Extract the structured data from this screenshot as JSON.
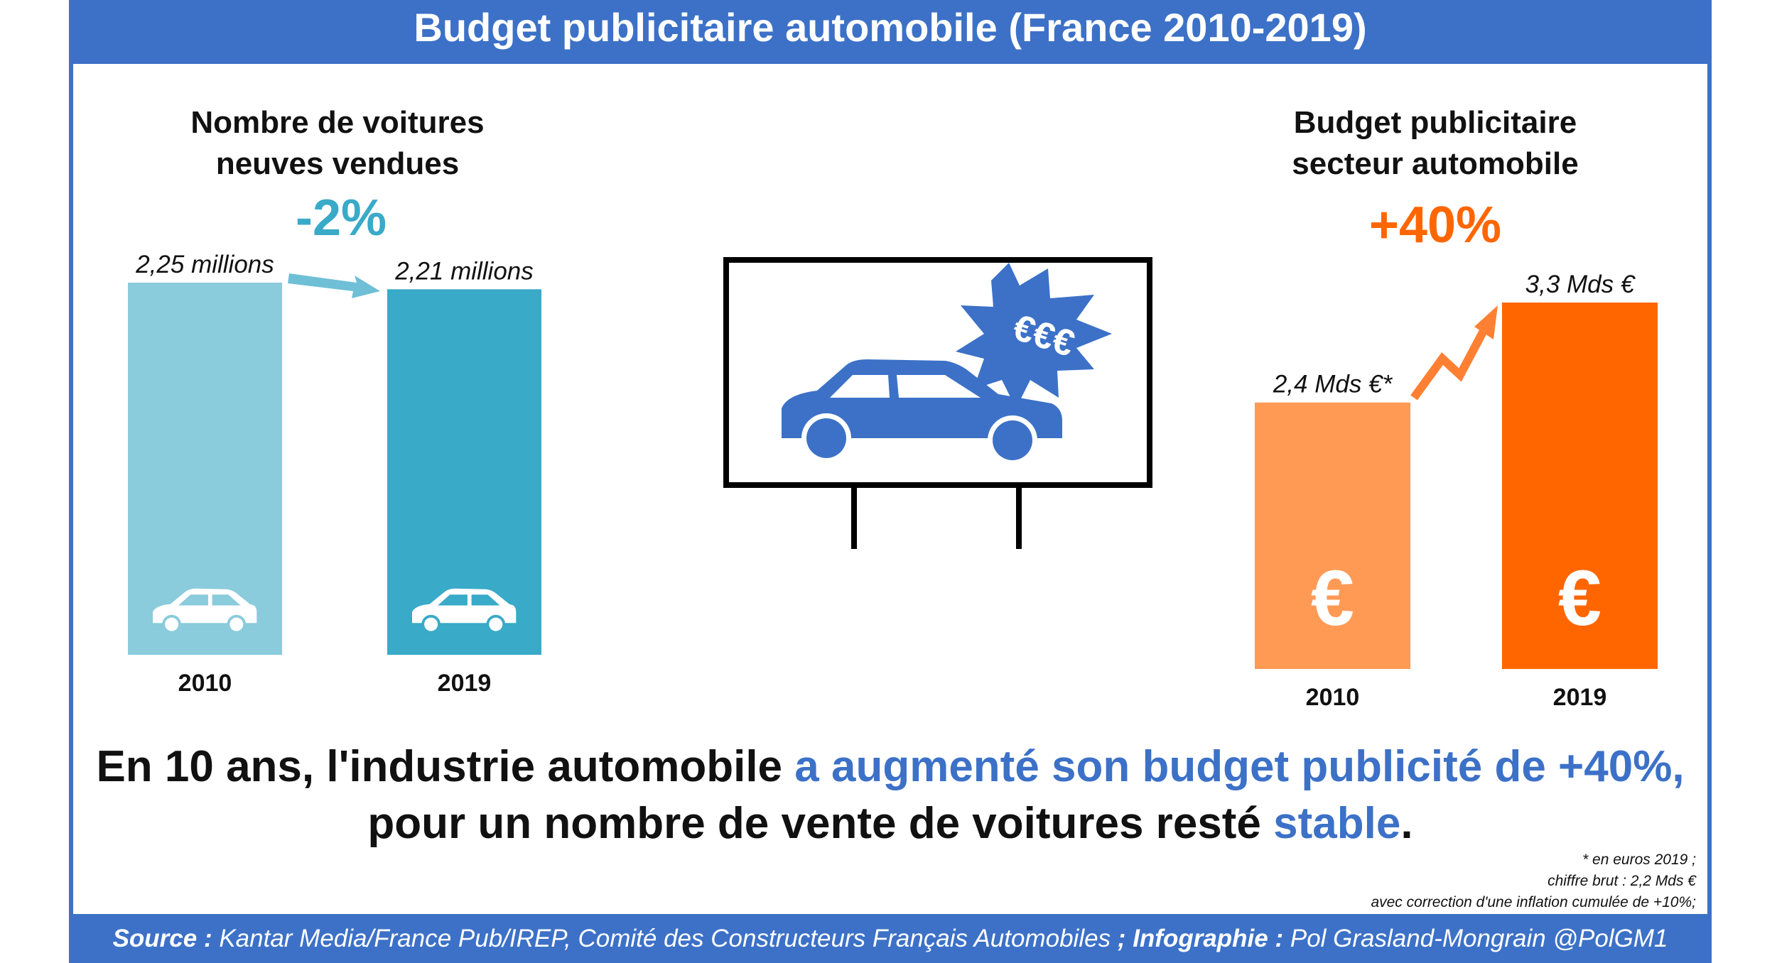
{
  "title": "Budget publicitaire automobile (France 2010-2019)",
  "colors": {
    "frame_blue": "#3c71c7",
    "cars_2010": "#8acbdc",
    "cars_2019": "#39aac8",
    "budget_2010": "#ff9a55",
    "budget_2019": "#ff6600",
    "cars_pct": "#39aac8",
    "budget_pct": "#ff6600",
    "billboard_car": "#3c71c7"
  },
  "chart_data": [
    {
      "type": "bar",
      "title": "Nombre de voitures neuves vendues",
      "title_lines": [
        "Nombre de voitures",
        "neuves vendues"
      ],
      "change": "-2%",
      "categories": [
        "2010",
        "2019"
      ],
      "values": [
        2.25,
        2.21
      ],
      "value_labels": [
        "2,25 millions",
        "2,21 millions"
      ],
      "bar_icon": "car-icon",
      "ylim": [
        0,
        2.25
      ]
    },
    {
      "type": "bar",
      "title": "Budget publicitaire secteur automobile",
      "title_lines": [
        "Budget publicitaire",
        "secteur automobile"
      ],
      "change": "+40%",
      "categories": [
        "2010",
        "2019"
      ],
      "values": [
        2.4,
        3.3
      ],
      "value_labels": [
        "2,4 Mds €*",
        "3,3 Mds €"
      ],
      "bar_icon": "euro-icon",
      "bar_symbol": "€",
      "ylim": [
        0,
        3.3
      ]
    }
  ],
  "billboard": {
    "badge": "€€€",
    "icon": "billboard-car-icon"
  },
  "conclusion": {
    "line1_plain": "En 10 ans, l'industrie automobile ",
    "line1_highlight": "a augmenté son budget publicité de +40%,",
    "line2_plain": "pour un nombre de vente de voitures resté ",
    "line2_highlight": "stable",
    "line2_end": "."
  },
  "footnote": [
    "* en euros 2019 ;",
    "chiffre brut :  2,2 Mds €",
    "avec correction d'une inflation cumulée de +10%;"
  ],
  "source": {
    "label1": "Source :",
    "text1": " Kantar Media/France Pub/IREP, Comité des Constructeurs Français Automobiles ",
    "sep": "; ",
    "label2": "Infographie :",
    "text2": " Pol Grasland-Mongrain @PolGM1"
  }
}
